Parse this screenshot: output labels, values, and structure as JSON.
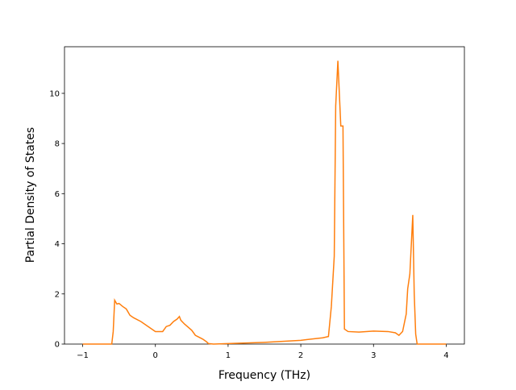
{
  "chart_data": {
    "type": "line",
    "xlabel": "Frequency (THz)",
    "ylabel": "Partial Density of States",
    "x": [
      -1,
      -0.6,
      -0.58,
      -0.56,
      -0.53,
      -0.5,
      -0.45,
      -0.4,
      -0.35,
      -0.3,
      -0.2,
      -0.1,
      0,
      0.1,
      0.15,
      0.2,
      0.25,
      0.3,
      0.33,
      0.35,
      0.4,
      0.5,
      0.55,
      0.65,
      0.7,
      0.73,
      0.8,
      1.0,
      1.5,
      2.0,
      2.3,
      2.38,
      2.42,
      2.46,
      2.48,
      2.51,
      2.53,
      2.55,
      2.58,
      2.6,
      2.65,
      2.8,
      3.0,
      3.2,
      3.3,
      3.35,
      3.4,
      3.45,
      3.47,
      3.5,
      3.54,
      3.56,
      3.58,
      3.6,
      4.0
    ],
    "series": [
      {
        "color": "#ff7f0e",
        "values": [
          0,
          0,
          0.5,
          1.75,
          1.6,
          1.62,
          1.5,
          1.4,
          1.15,
          1.05,
          0.9,
          0.7,
          0.5,
          0.5,
          0.7,
          0.75,
          0.9,
          1.0,
          1.1,
          0.95,
          0.8,
          0.55,
          0.35,
          0.2,
          0.1,
          0.02,
          0,
          0.02,
          0.07,
          0.15,
          0.25,
          0.3,
          1.5,
          3.5,
          9.5,
          11.3,
          10,
          8.7,
          8.7,
          0.6,
          0.5,
          0.48,
          0.52,
          0.5,
          0.45,
          0.35,
          0.5,
          1.2,
          2.2,
          2.8,
          5.15,
          2,
          0.4,
          0,
          0
        ]
      }
    ],
    "xlim": [
      -1.25,
      4.25
    ],
    "xticks": [
      {
        "value": -1,
        "label": "−1"
      },
      0,
      1,
      2,
      3,
      4
    ],
    "ylim": [
      0,
      11.86
    ],
    "yticks": [
      0,
      2,
      4,
      6,
      8,
      10
    ]
  }
}
